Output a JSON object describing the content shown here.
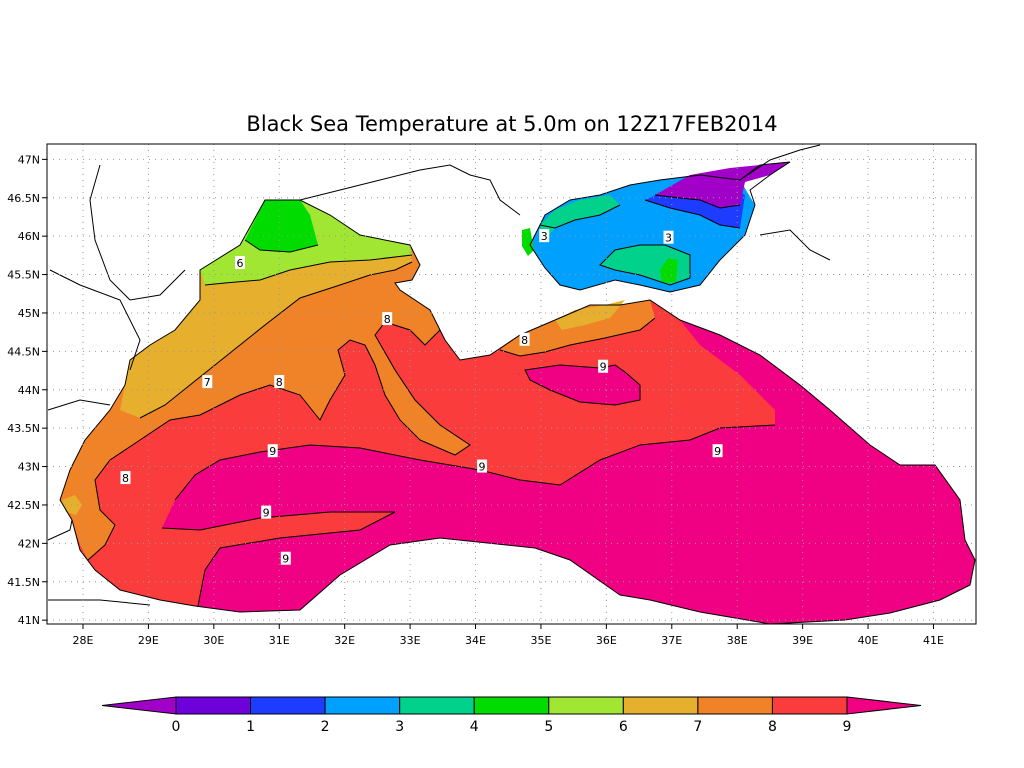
{
  "title": "Black Sea Temperature at 5.0m on 12Z17FEB2014",
  "axes": {
    "lon_ticks": [
      "28E",
      "29E",
      "30E",
      "31E",
      "32E",
      "33E",
      "34E",
      "35E",
      "36E",
      "37E",
      "38E",
      "39E",
      "40E",
      "41E"
    ],
    "lat_ticks": [
      "47N",
      "46.5N",
      "46N",
      "45.5N",
      "45N",
      "44.5N",
      "44N",
      "43.5N",
      "43N",
      "42.5N",
      "42N",
      "41.5N",
      "41N"
    ]
  },
  "contour_labels": [
    {
      "text": "6",
      "lon": 30.4,
      "lat": 45.65
    },
    {
      "text": "7",
      "lon": 29.9,
      "lat": 44.1
    },
    {
      "text": "8",
      "lon": 31.0,
      "lat": 44.1
    },
    {
      "text": "8",
      "lon": 32.65,
      "lat": 44.92
    },
    {
      "text": "8",
      "lon": 34.75,
      "lat": 44.65
    },
    {
      "text": "8",
      "lon": 28.65,
      "lat": 42.85
    },
    {
      "text": "9",
      "lon": 30.9,
      "lat": 43.2
    },
    {
      "text": "9",
      "lon": 30.8,
      "lat": 42.4
    },
    {
      "text": "9",
      "lon": 31.1,
      "lat": 41.8
    },
    {
      "text": "9",
      "lon": 34.1,
      "lat": 43.0
    },
    {
      "text": "9",
      "lon": 35.95,
      "lat": 44.3
    },
    {
      "text": "9",
      "lon": 37.7,
      "lat": 43.2
    },
    {
      "text": "3",
      "lon": 35.05,
      "lat": 46.0
    },
    {
      "text": "3",
      "lon": 36.95,
      "lat": 45.98
    }
  ],
  "colorbar": {
    "labels": [
      "0",
      "1",
      "2",
      "3",
      "4",
      "5",
      "6",
      "7",
      "8",
      "9"
    ],
    "colors": [
      "#a000c8",
      "#6e00dc",
      "#1e3cff",
      "#00a0ff",
      "#00d28c",
      "#00dc00",
      "#a0e632",
      "#e6af2d",
      "#f08228",
      "#fa3c3c",
      "#f00082"
    ]
  },
  "colors": {
    "land": "#ffffff",
    "grid": "#999999"
  }
}
